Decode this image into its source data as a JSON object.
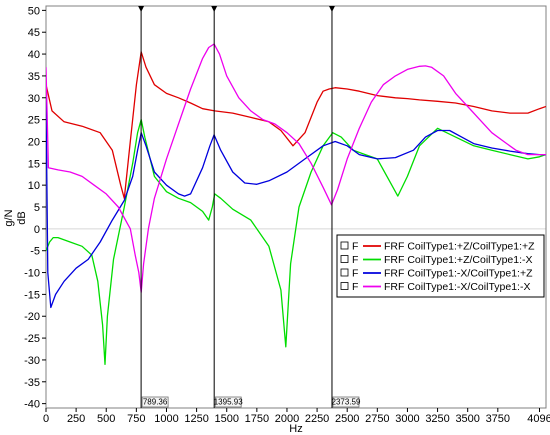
{
  "chart_data": {
    "type": "line",
    "xlabel": "Hz",
    "ylabel_top": "g/N",
    "ylabel_bottom": "dB",
    "xlim": [
      0,
      4150
    ],
    "ylim": [
      -41,
      51
    ],
    "x_ticks": [
      0,
      250,
      500,
      750,
      1000,
      1250,
      1500,
      1750,
      2000,
      2250,
      2500,
      2750,
      3000,
      3250,
      3500,
      3750,
      4096
    ],
    "y_ticks": [
      -40,
      -35,
      -30,
      -25,
      -20,
      -15,
      -10,
      -5,
      0,
      5,
      10,
      15,
      20,
      25,
      30,
      35,
      40,
      45,
      50
    ],
    "cursors": [
      {
        "x": 789.36,
        "label": "789.36"
      },
      {
        "x": 1395.93,
        "label": "1395.93"
      },
      {
        "x": 2373.59,
        "label": "2373.59"
      }
    ],
    "legend_position": "bottom-right",
    "series": [
      {
        "name": "FRF CoilType1:+Z/CoilType1:+Z",
        "flag": "F",
        "color": "#e00000",
        "x": [
          0,
          50,
          150,
          300,
          450,
          550,
          620,
          650,
          700,
          750,
          790,
          830,
          900,
          1000,
          1100,
          1200,
          1300,
          1400,
          1550,
          1700,
          1850,
          1950,
          2050,
          2150,
          2250,
          2300,
          2350,
          2400,
          2500,
          2600,
          2750,
          2900,
          3000,
          3100,
          3250,
          3400,
          3550,
          3700,
          3850,
          4000,
          4096,
          4150
        ],
        "y": [
          33,
          27,
          24.5,
          23.5,
          22,
          18,
          10,
          7,
          20,
          33,
          40.5,
          37,
          33,
          31,
          30,
          28.8,
          27.5,
          27,
          26.5,
          25.5,
          24.5,
          22.5,
          19,
          22,
          29,
          31.5,
          32,
          32.3,
          32,
          31.5,
          30.5,
          30,
          29.8,
          29.5,
          29.2,
          28.8,
          28,
          27,
          26.5,
          26.5,
          27.5,
          28
        ]
      },
      {
        "name": "FRF CoilType1:+Z/CoilType1:-X",
        "flag": "F",
        "color": "#00dd00",
        "x": [
          0,
          30,
          60,
          100,
          200,
          300,
          380,
          430,
          470,
          490,
          510,
          560,
          650,
          720,
          760,
          790,
          820,
          900,
          1000,
          1100,
          1200,
          1300,
          1350,
          1380,
          1400,
          1450,
          1550,
          1700,
          1850,
          1950,
          1990,
          2030,
          2100,
          2200,
          2300,
          2380,
          2450,
          2550,
          2650,
          2750,
          2850,
          2920,
          3000,
          3100,
          3250,
          3400,
          3550,
          3700,
          3850,
          4000,
          4096,
          4150
        ],
        "y": [
          -5,
          -3,
          -2,
          -2,
          -3,
          -4,
          -6,
          -12,
          -22,
          -31,
          -20,
          -7,
          5,
          15,
          22,
          25,
          21,
          12,
          8.5,
          7,
          6,
          4,
          2,
          5,
          8,
          7,
          4.5,
          2,
          -4,
          -14,
          -27,
          -8,
          5,
          13,
          19,
          22,
          21,
          18,
          17,
          16,
          11,
          7.5,
          12,
          19,
          23,
          21,
          19,
          18,
          17,
          16,
          16.5,
          17
        ]
      },
      {
        "name": "FRF CoilType1:-X/CoilType1:+Z",
        "flag": "F",
        "color": "#0000dd",
        "x": [
          0,
          15,
          40,
          80,
          150,
          250,
          350,
          450,
          550,
          650,
          720,
          760,
          790,
          830,
          900,
          1000,
          1100,
          1150,
          1200,
          1300,
          1360,
          1395,
          1450,
          1550,
          1650,
          1750,
          1850,
          2000,
          2150,
          2300,
          2400,
          2500,
          2600,
          2750,
          2900,
          3050,
          3150,
          3250,
          3350,
          3450,
          3550,
          3700,
          3850,
          4000,
          4096,
          4150
        ],
        "y": [
          30,
          -10,
          -18,
          -15,
          -12,
          -9,
          -7,
          -3,
          2,
          6.5,
          12,
          18,
          22,
          19,
          13,
          10,
          8,
          7.5,
          8,
          14,
          19,
          21.5,
          18,
          13,
          10.5,
          10.2,
          11,
          13,
          16,
          19,
          20,
          19,
          17,
          16,
          16.3,
          18,
          21,
          22.5,
          22.5,
          21,
          19.5,
          18.5,
          17.8,
          17.2,
          17,
          17
        ]
      },
      {
        "name": "FRF CoilType1:-X/CoilType1:-X",
        "flag": "F",
        "color": "#ee00ee",
        "x": [
          0,
          20,
          100,
          200,
          300,
          400,
          500,
          600,
          700,
          740,
          770,
          790,
          810,
          850,
          900,
          1000,
          1100,
          1200,
          1300,
          1350,
          1395,
          1440,
          1500,
          1600,
          1700,
          1800,
          1900,
          2000,
          2100,
          2200,
          2300,
          2370,
          2420,
          2500,
          2600,
          2700,
          2800,
          2900,
          3000,
          3100,
          3150,
          3200,
          3300,
          3400,
          3500,
          3600,
          3700,
          3800,
          3900,
          4000,
          4096,
          4150
        ],
        "y": [
          37,
          14,
          13.5,
          13,
          12,
          10,
          8,
          5,
          0,
          -6,
          -10,
          -14.5,
          -8,
          0,
          7,
          16,
          24,
          32,
          39,
          41.5,
          42.3,
          40,
          35,
          30,
          27,
          25,
          24,
          22,
          19.5,
          15,
          9.5,
          5.5,
          9,
          16,
          23,
          29,
          33,
          35,
          36.5,
          37.2,
          37.3,
          37,
          35,
          31,
          28,
          25,
          22,
          20,
          18,
          17,
          17,
          17
        ]
      }
    ]
  }
}
